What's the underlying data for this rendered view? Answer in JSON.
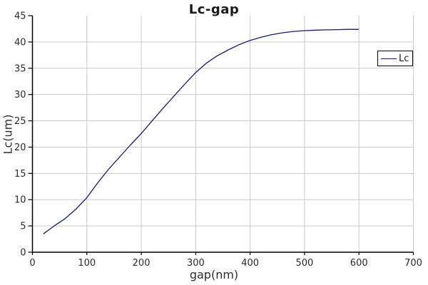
{
  "title": "Lc-gap",
  "colors": {
    "line": "#191970",
    "grid": "#c9c9c9",
    "axis": "#000000",
    "tick_text": "#2b2b2b",
    "background": "#ffffff",
    "legend_border": "#000000"
  },
  "legend": {
    "position": "right",
    "entries": [
      {
        "label": "Lc",
        "color": "#191970"
      }
    ]
  },
  "chart_data": {
    "type": "line",
    "title": "Lc-gap",
    "xlabel": "gap(nm)",
    "ylabel": "Lc(um)",
    "xlim": [
      0,
      700
    ],
    "ylim": [
      0,
      45
    ],
    "x_ticks": [
      0,
      100,
      200,
      300,
      400,
      500,
      600,
      700
    ],
    "y_ticks": [
      0,
      5,
      10,
      15,
      20,
      25,
      30,
      35,
      40,
      45
    ],
    "grid": true,
    "legend_position": "right",
    "series": [
      {
        "name": "Lc",
        "color": "#191970",
        "x": [
          20,
          40,
          60,
          80,
          100,
          120,
          140,
          160,
          180,
          200,
          220,
          240,
          260,
          280,
          300,
          320,
          340,
          360,
          380,
          400,
          420,
          440,
          460,
          480,
          500,
          520,
          540,
          560,
          580,
          600
        ],
        "y": [
          3.5,
          5.0,
          6.4,
          8.2,
          10.4,
          13.2,
          15.8,
          18.1,
          20.4,
          22.6,
          25.0,
          27.4,
          29.7,
          32.0,
          34.2,
          36.0,
          37.4,
          38.5,
          39.5,
          40.3,
          40.9,
          41.4,
          41.75,
          42.0,
          42.15,
          42.25,
          42.3,
          42.35,
          42.4,
          42.4
        ]
      }
    ]
  }
}
